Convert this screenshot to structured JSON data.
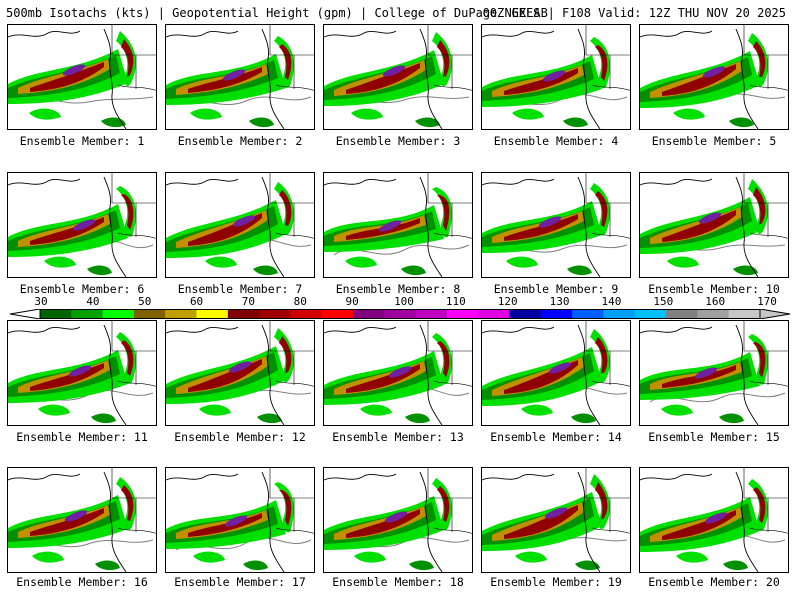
{
  "header": {
    "product": "500mb Isotachs (kts) | Geopotential Height (gpm) | College of DuPage NEXLAB",
    "run": "00Z GEFS | F108 Valid: 12Z THU NOV 20 2025"
  },
  "members": [
    "Ensemble Member: 1",
    "Ensemble Member: 2",
    "Ensemble Member: 3",
    "Ensemble Member: 4",
    "Ensemble Member: 5",
    "Ensemble Member: 6",
    "Ensemble Member: 7",
    "Ensemble Member: 8",
    "Ensemble Member: 9",
    "Ensemble Member: 10",
    "Ensemble Member: 11",
    "Ensemble Member: 12",
    "Ensemble Member: 13",
    "Ensemble Member: 14",
    "Ensemble Member: 15",
    "Ensemble Member: 16",
    "Ensemble Member: 17",
    "Ensemble Member: 18",
    "Ensemble Member: 19",
    "Ensemble Member: 20"
  ],
  "colorbar": {
    "labels": [
      "30",
      "40",
      "50",
      "60",
      "70",
      "80",
      "90",
      "100",
      "110",
      "120",
      "130",
      "140",
      "150",
      "160",
      "170"
    ],
    "colors": [
      "#006400",
      "#00a000",
      "#00ff00",
      "#806000",
      "#c0a000",
      "#ffff00",
      "#800000",
      "#a00000",
      "#d00000",
      "#ff0000",
      "#800080",
      "#a000a0",
      "#c000c0",
      "#ff00ff",
      "#e000e0",
      "#0000a0",
      "#0000ff",
      "#0060ff",
      "#00a0ff",
      "#00c0ff",
      "#808080",
      "#a0a0a0",
      "#c8c8c8"
    ]
  },
  "palette": {
    "wind_light": "#00e000",
    "wind_mid": "#009000",
    "wind_band": "#c09000",
    "wind_strong": "#900000",
    "wind_max": "#7020a0",
    "coast": "#000000",
    "contour": "#808080"
  }
}
